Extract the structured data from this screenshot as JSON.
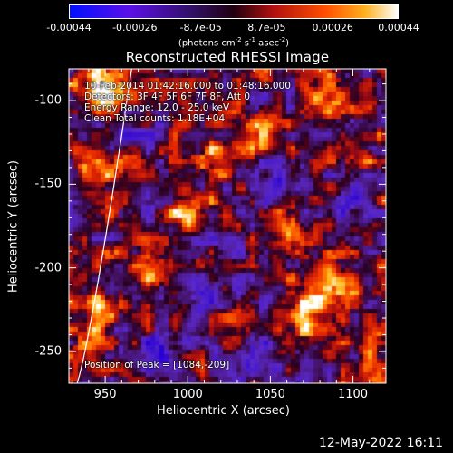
{
  "colorbar": {
    "ticks": [
      "-0.00044",
      "-0.00026",
      "-8.7e-05",
      "8.7e-05",
      "0.00026",
      "0.00044"
    ],
    "units_main": "(photons cm",
    "units_exp1": "-2",
    "units_mid": " s",
    "units_exp2": "-1",
    "units_end": " asec",
    "units_exp3": "-2",
    "units_close": ")"
  },
  "annotations": {
    "time_range": "10-Feb-2014 01:42:16.000 to 01:48:16.000",
    "detectors": "Detectors: 3F 4F 5F 6F 7F 8F, Att 0",
    "energy": "Energy Range: 12.0 - 25.0 keV",
    "counts": "Clean     Total counts: 1.18E+04",
    "peak": "Position of Peak = [1084,-209]"
  },
  "footer": {
    "date": "12-May-2022 16:11"
  },
  "chart_data": {
    "type": "heatmap",
    "title": "Reconstructed RHESSI Image",
    "xlabel": "Heliocentric X (arcsec)",
    "ylabel": "Heliocentric Y (arcsec)",
    "xlim": [
      928,
      1120
    ],
    "ylim": [
      -269,
      -81
    ],
    "x_ticks": [
      "950",
      "1000",
      "1050",
      "1100"
    ],
    "y_ticks": [
      "-100",
      "-150",
      "-200",
      "-250"
    ],
    "x_tick_values": [
      950,
      1000,
      1050,
      1100
    ],
    "y_tick_values": [
      -100,
      -150,
      -200,
      -250
    ],
    "colorbar_range": [
      -0.00044,
      0.00044
    ],
    "colormap": "red-temperature with negative blue",
    "peak_position": [
      1084,
      -209
    ],
    "colors": {
      "neg": "#3000d8",
      "zero": "#200018",
      "low": "#a01020",
      "mid": "#ff6000",
      "high": "#ffffff"
    },
    "bright_regions": [
      {
        "x": 1084,
        "y": -209,
        "level": 1.0
      },
      {
        "x": 1072,
        "y": -228,
        "level": 0.85
      },
      {
        "x": 1000,
        "y": -165,
        "level": 0.85
      },
      {
        "x": 1018,
        "y": -135,
        "level": 0.6
      },
      {
        "x": 955,
        "y": -100,
        "level": 0.8
      },
      {
        "x": 940,
        "y": -88,
        "level": 0.7
      },
      {
        "x": 948,
        "y": -140,
        "level": 0.55
      },
      {
        "x": 945,
        "y": -228,
        "level": 0.75
      },
      {
        "x": 937,
        "y": -255,
        "level": 0.6
      },
      {
        "x": 1085,
        "y": -95,
        "level": 0.55
      },
      {
        "x": 1100,
        "y": -130,
        "level": 0.5
      },
      {
        "x": 1045,
        "y": -120,
        "level": 0.45
      },
      {
        "x": 1062,
        "y": -175,
        "level": 0.5
      },
      {
        "x": 975,
        "y": -205,
        "level": 0.45
      },
      {
        "x": 1110,
        "y": -250,
        "level": 0.4
      },
      {
        "x": 1030,
        "y": -235,
        "level": 0.3
      }
    ],
    "dark_regions": [
      {
        "x": 985,
        "y": -250,
        "level": 0.7
      },
      {
        "x": 1040,
        "y": -255,
        "level": 0.6
      },
      {
        "x": 1055,
        "y": -150,
        "level": 0.5
      },
      {
        "x": 1020,
        "y": -210,
        "level": 0.45
      },
      {
        "x": 1095,
        "y": -165,
        "level": 0.4
      },
      {
        "x": 970,
        "y": -120,
        "level": 0.35
      }
    ]
  }
}
